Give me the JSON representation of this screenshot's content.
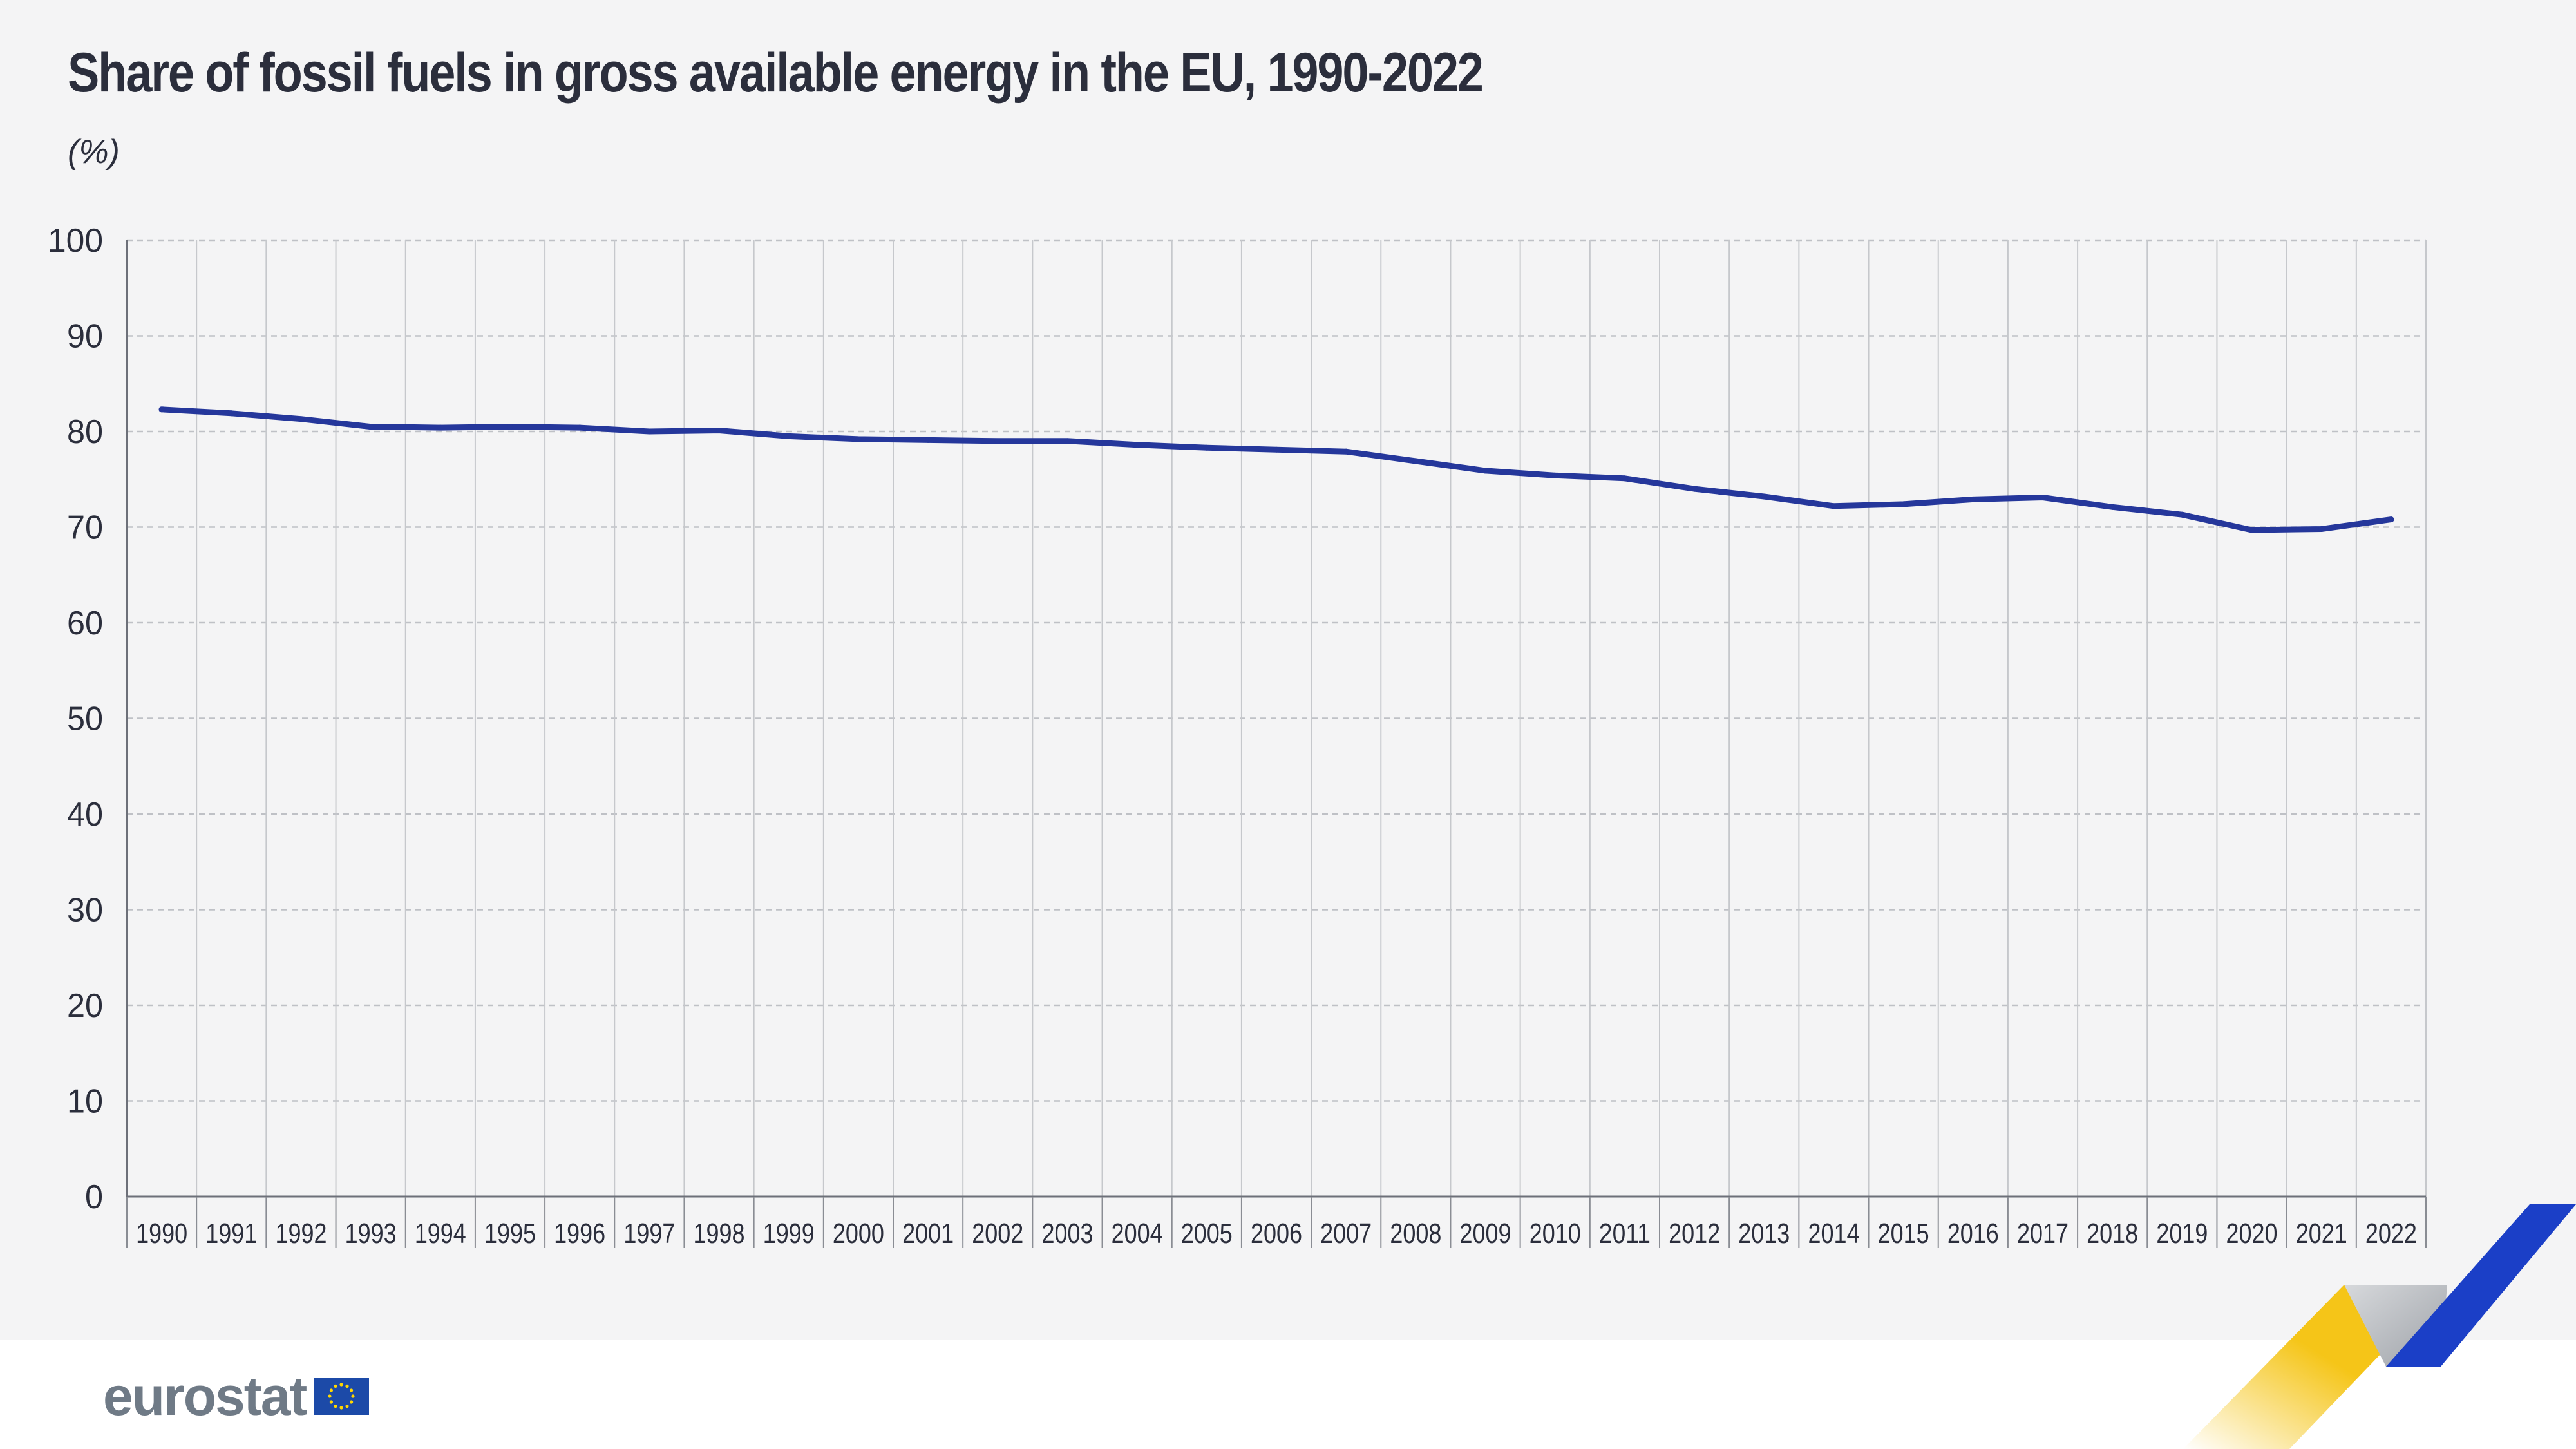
{
  "header": {
    "title": "Share of fossil fuels in gross available energy in the EU, 1990-2022",
    "unit": "(%)"
  },
  "brand": {
    "wordmark": "eurostat",
    "colors": {
      "line": "#25379b",
      "ribbon_yellow": "#f5c518",
      "ribbon_grey": "#9ea2a8",
      "ribbon_blue": "#1b3fc7",
      "flag_blue": "#1c4aa8",
      "flag_stars": "#ffd700"
    }
  },
  "chart_data": {
    "type": "line",
    "title": "Share of fossil fuels in gross available energy in the EU, 1990-2022",
    "ylabel": "(%)",
    "ylim": [
      0,
      100
    ],
    "yticks": [
      0,
      10,
      20,
      30,
      40,
      50,
      60,
      70,
      80,
      90,
      100
    ],
    "grid": true,
    "categories": [
      "1990",
      "1991",
      "1992",
      "1993",
      "1994",
      "1995",
      "1996",
      "1997",
      "1998",
      "1999",
      "2000",
      "2001",
      "2002",
      "2003",
      "2004",
      "2005",
      "2006",
      "2007",
      "2008",
      "2009",
      "2010",
      "2011",
      "2012",
      "2013",
      "2014",
      "2015",
      "2016",
      "2017",
      "2018",
      "2019",
      "2020",
      "2021",
      "2022"
    ],
    "series": [
      {
        "values": [
          82.3,
          81.9,
          81.3,
          80.5,
          80.4,
          80.5,
          80.4,
          80.0,
          80.1,
          79.5,
          79.2,
          79.1,
          79.0,
          79.0,
          78.6,
          78.3,
          78.1,
          77.9,
          76.9,
          75.9,
          75.4,
          75.1,
          74.0,
          73.2,
          72.2,
          72.4,
          72.9,
          73.1,
          72.1,
          71.3,
          69.7,
          69.8,
          70.8
        ]
      }
    ]
  }
}
